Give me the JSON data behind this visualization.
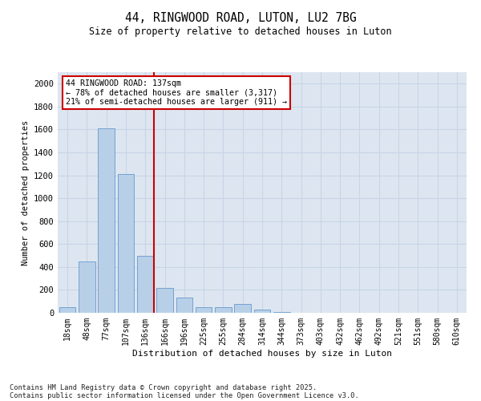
{
  "title1": "44, RINGWOOD ROAD, LUTON, LU2 7BG",
  "title2": "Size of property relative to detached houses in Luton",
  "xlabel": "Distribution of detached houses by size in Luton",
  "ylabel": "Number of detached properties",
  "categories": [
    "18sqm",
    "48sqm",
    "77sqm",
    "107sqm",
    "136sqm",
    "166sqm",
    "196sqm",
    "225sqm",
    "255sqm",
    "284sqm",
    "314sqm",
    "344sqm",
    "373sqm",
    "403sqm",
    "432sqm",
    "462sqm",
    "492sqm",
    "521sqm",
    "551sqm",
    "580sqm",
    "610sqm"
  ],
  "values": [
    50,
    450,
    1610,
    1210,
    500,
    220,
    130,
    50,
    50,
    80,
    30,
    5,
    2,
    1,
    0,
    0,
    0,
    0,
    0,
    0,
    0
  ],
  "bar_color": "#b8cfe8",
  "bar_edge_color": "#6699cc",
  "vline_color": "#cc0000",
  "annotation_text": "44 RINGWOOD ROAD: 137sqm\n← 78% of detached houses are smaller (3,317)\n21% of semi-detached houses are larger (911) →",
  "annotation_box_color": "#cc0000",
  "ylim": [
    0,
    2100
  ],
  "yticks": [
    0,
    200,
    400,
    600,
    800,
    1000,
    1200,
    1400,
    1600,
    1800,
    2000
  ],
  "grid_color": "#c8d4e8",
  "bg_color": "#dde6f0",
  "footnote1": "Contains HM Land Registry data © Crown copyright and database right 2025.",
  "footnote2": "Contains public sector information licensed under the Open Government Licence v3.0."
}
